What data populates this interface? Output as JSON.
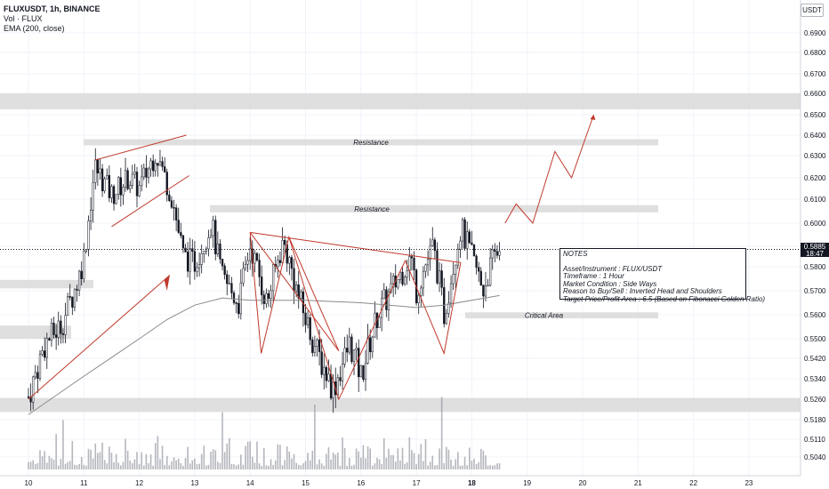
{
  "header": {
    "symbol_line": "FLUXUSDT, 1h, BINANCE",
    "vol_line": "Vol · FLUX",
    "ema_line": "EMA (200, close)",
    "currency": "USDT"
  },
  "price_tag": {
    "price": "0.5885",
    "countdown": "18:47"
  },
  "notes": {
    "title": "NOTES",
    "lines": [
      "Asset/Instrument : FLUX/USDT",
      "Timeframe : 1 Hour",
      "Market Condition : Side Ways",
      "Reason to Buy/Sell : Inverted Head and Shoulders",
      "Target Price/Profit Area : 6.5 (Based on Fibonacci Golden Ratio)"
    ]
  },
  "zones": [
    {
      "label": "",
      "from": 0.6525,
      "to": 0.66
    },
    {
      "label": "Resistance",
      "from": 0.635,
      "to": 0.638
    },
    {
      "label": "Resistance",
      "from": 0.6045,
      "to": 0.6075
    },
    {
      "label": "Critical Area",
      "from": 0.5585,
      "to": 0.561
    },
    {
      "label": "",
      "from": 0.521,
      "to": 0.5265
    },
    {
      "label": "",
      "from": 0.571,
      "to": 0.5745
    },
    {
      "label": "",
      "from": 0.55,
      "to": 0.5555
    }
  ],
  "colors": {
    "trend": "#c0392b",
    "candle": "#131722",
    "ema": "#8a8a8a",
    "zone": "#d9d9d9"
  },
  "chart_data": {
    "type": "candlestick",
    "x_ticks": [
      "10",
      "11",
      "12",
      "13",
      "14",
      "15",
      "16",
      "17",
      "18",
      "19",
      "20",
      "21",
      "22",
      "23"
    ],
    "y_ticks": [
      "0.6900",
      "0.6800",
      "0.6700",
      "0.6600",
      "0.6500",
      "0.6400",
      "0.6300",
      "0.6200",
      "0.6100",
      "0.6000",
      "0.5900",
      "0.5800",
      "0.5700",
      "0.5600",
      "0.5500",
      "0.5420",
      "0.5340",
      "0.5260",
      "0.5180",
      "0.5110",
      "0.5040"
    ],
    "current_price": 0.5885,
    "close_path": [
      [
        10.0,
        0.527
      ],
      [
        10.3,
        0.548
      ],
      [
        10.6,
        0.556
      ],
      [
        10.9,
        0.575
      ],
      [
        11.0,
        0.585
      ],
      [
        11.2,
        0.625
      ],
      [
        11.5,
        0.612
      ],
      [
        11.8,
        0.62
      ],
      [
        12.0,
        0.615
      ],
      [
        12.3,
        0.632
      ],
      [
        12.6,
        0.61
      ],
      [
        12.8,
        0.585
      ],
      [
        13.0,
        0.582
      ],
      [
        13.3,
        0.6
      ],
      [
        13.5,
        0.575
      ],
      [
        13.8,
        0.565
      ],
      [
        14.0,
        0.59
      ],
      [
        14.3,
        0.565
      ],
      [
        14.6,
        0.592
      ],
      [
        14.9,
        0.565
      ],
      [
        15.2,
        0.545
      ],
      [
        15.5,
        0.53
      ],
      [
        15.8,
        0.548
      ],
      [
        16.0,
        0.535
      ],
      [
        16.3,
        0.56
      ],
      [
        16.6,
        0.572
      ],
      [
        16.9,
        0.585
      ],
      [
        17.0,
        0.57
      ],
      [
        17.3,
        0.59
      ],
      [
        17.5,
        0.56
      ],
      [
        17.8,
        0.598
      ],
      [
        18.0,
        0.585
      ],
      [
        18.2,
        0.57
      ],
      [
        18.4,
        0.585
      ],
      [
        18.5,
        0.5885
      ]
    ],
    "ema_200": [
      [
        10.0,
        0.52
      ],
      [
        11.0,
        0.535
      ],
      [
        12.0,
        0.55
      ],
      [
        12.5,
        0.558
      ],
      [
        13.0,
        0.564
      ],
      [
        13.5,
        0.567
      ],
      [
        14.0,
        0.566
      ],
      [
        15.0,
        0.566
      ],
      [
        16.0,
        0.565
      ],
      [
        17.0,
        0.563
      ],
      [
        17.5,
        0.564
      ],
      [
        18.0,
        0.566
      ],
      [
        18.5,
        0.568
      ]
    ],
    "projection": [
      [
        18.6,
        0.6
      ],
      [
        18.8,
        0.608
      ],
      [
        19.1,
        0.6
      ],
      [
        19.5,
        0.632
      ],
      [
        19.8,
        0.62
      ],
      [
        20.2,
        0.65
      ]
    ]
  }
}
